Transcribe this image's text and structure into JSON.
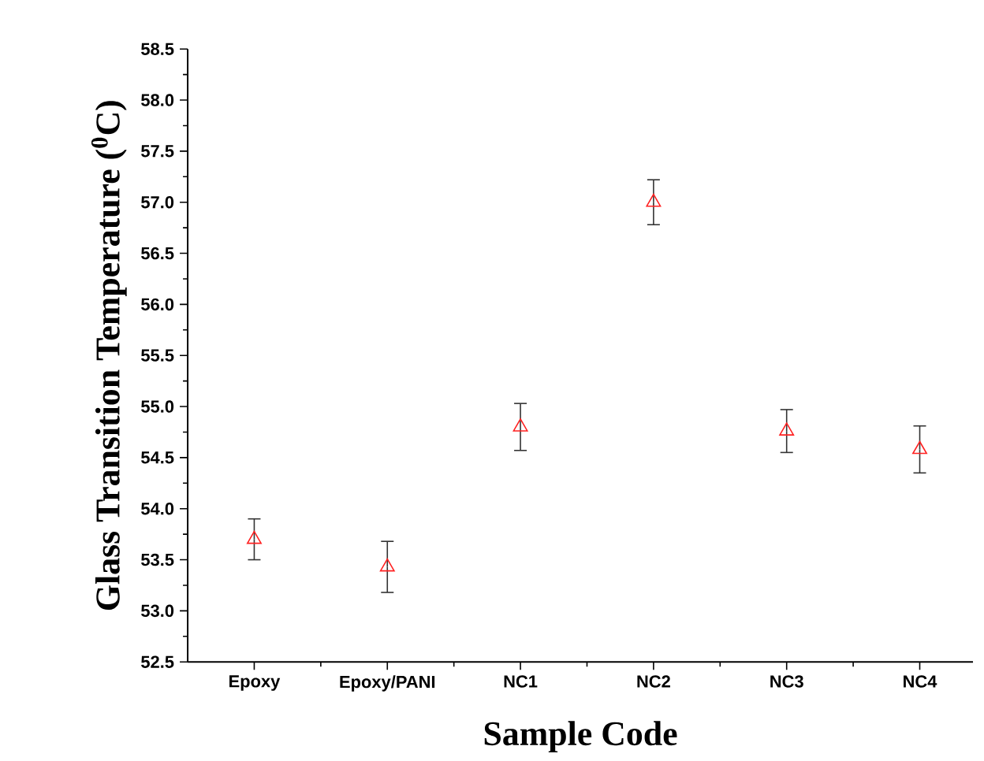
{
  "chart_data": {
    "type": "scatter",
    "xlabel": "Sample Code",
    "ylabel": "Glass Transition Temperature ($^{0}$C)",
    "categories": [
      "Epoxy",
      "Epoxy/PANI",
      "NC1",
      "NC2",
      "NC3",
      "NC4"
    ],
    "values": [
      53.7,
      53.43,
      54.8,
      57.0,
      54.76,
      54.58
    ],
    "errors": [
      0.2,
      0.25,
      0.23,
      0.22,
      0.21,
      0.23
    ],
    "color": "#ff2020",
    "marker": "triangle",
    "ylim": [
      52.5,
      58.5
    ],
    "yticks": [
      52.5,
      {
        "value": 53,
        "label": "53.0"
      },
      53.5,
      {
        "value": 54,
        "label": "54.0"
      },
      54.5,
      {
        "value": 55,
        "label": "55.0"
      },
      55.5,
      {
        "value": 56,
        "label": "56.0"
      },
      56.5,
      {
        "value": 57,
        "label": "57.0"
      },
      57.5,
      {
        "value": 58,
        "label": "58.0"
      },
      58.5
    ]
  }
}
